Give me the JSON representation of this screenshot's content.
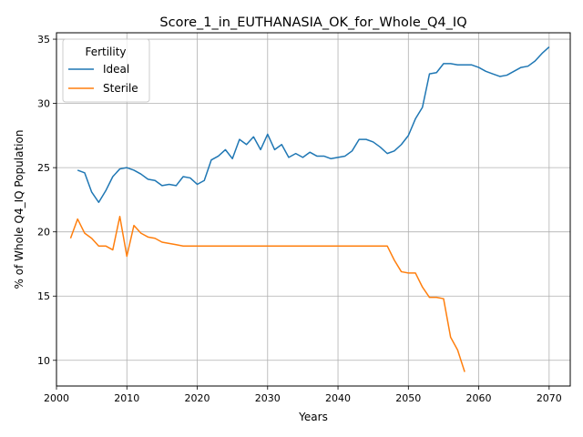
{
  "chart_data": {
    "type": "line",
    "title": "Score_1_in_EUTHANASIA_OK_for_Whole_Q4_IQ",
    "xlabel": "Years",
    "ylabel": "% of Whole Q4_IQ Population",
    "xlim": [
      2000,
      2073
    ],
    "ylim": [
      8,
      35.5
    ],
    "xticks": [
      2000,
      2010,
      2020,
      2030,
      2040,
      2050,
      2060,
      2070
    ],
    "yticks": [
      10,
      15,
      20,
      25,
      30,
      35
    ],
    "grid": true,
    "legend": {
      "title": "Fertility",
      "position": "top-left"
    },
    "series": [
      {
        "name": "Ideal",
        "color": "#1f77b4",
        "x": [
          2003,
          2004,
          2005,
          2006,
          2007,
          2008,
          2009,
          2010,
          2011,
          2012,
          2013,
          2014,
          2015,
          2016,
          2017,
          2018,
          2019,
          2020,
          2021,
          2022,
          2023,
          2024,
          2025,
          2026,
          2027,
          2028,
          2029,
          2030,
          2031,
          2032,
          2033,
          2034,
          2035,
          2036,
          2037,
          2038,
          2039,
          2040,
          2041,
          2042,
          2043,
          2044,
          2045,
          2046,
          2047,
          2048,
          2049,
          2050,
          2051,
          2052,
          2053,
          2054,
          2055,
          2056,
          2057,
          2058,
          2059,
          2060,
          2061,
          2062,
          2063,
          2064,
          2065,
          2066,
          2067,
          2068,
          2069,
          2070
        ],
        "y": [
          24.8,
          24.6,
          23.1,
          22.3,
          23.2,
          24.3,
          24.9,
          25.0,
          24.8,
          24.5,
          24.1,
          24.0,
          23.6,
          23.7,
          23.6,
          24.3,
          24.2,
          23.7,
          24.0,
          25.6,
          25.9,
          26.4,
          25.7,
          27.2,
          26.8,
          27.4,
          26.4,
          27.6,
          26.4,
          26.8,
          25.8,
          26.1,
          25.8,
          26.2,
          25.9,
          25.9,
          25.7,
          25.8,
          25.9,
          26.3,
          27.2,
          27.2,
          27.0,
          26.6,
          26.1,
          26.3,
          26.8,
          27.5,
          28.8,
          29.7,
          32.3,
          32.4,
          33.1,
          33.1,
          33.0,
          33.0,
          33.0,
          32.8,
          32.5,
          32.3,
          32.1,
          32.2,
          32.5,
          32.8,
          32.9,
          33.3,
          33.9,
          34.4
        ]
      },
      {
        "name": "Sterile",
        "color": "#ff7f0e",
        "x": [
          2002,
          2003,
          2004,
          2005,
          2006,
          2007,
          2008,
          2009,
          2010,
          2011,
          2012,
          2013,
          2014,
          2015,
          2016,
          2017,
          2018,
          2019,
          2020,
          2021,
          2022,
          2023,
          2024,
          2025,
          2026,
          2027,
          2028,
          2029,
          2030,
          2031,
          2032,
          2033,
          2034,
          2035,
          2036,
          2037,
          2038,
          2039,
          2040,
          2041,
          2042,
          2043,
          2044,
          2045,
          2046,
          2047,
          2048,
          2049,
          2050,
          2051,
          2052,
          2053,
          2054,
          2055,
          2056,
          2057,
          2058
        ],
        "y": [
          19.5,
          21.0,
          19.9,
          19.5,
          18.9,
          18.9,
          18.6,
          21.2,
          18.1,
          20.5,
          19.9,
          19.6,
          19.5,
          19.2,
          19.1,
          19.0,
          18.9,
          18.9,
          18.9,
          18.9,
          18.9,
          18.9,
          18.9,
          18.9,
          18.9,
          18.9,
          18.9,
          18.9,
          18.9,
          18.9,
          18.9,
          18.9,
          18.9,
          18.9,
          18.9,
          18.9,
          18.9,
          18.9,
          18.9,
          18.9,
          18.9,
          18.9,
          18.9,
          18.9,
          18.9,
          18.9,
          17.8,
          16.9,
          16.8,
          16.8,
          15.7,
          14.9,
          14.9,
          14.8,
          11.8,
          10.8,
          9.1
        ]
      }
    ]
  }
}
